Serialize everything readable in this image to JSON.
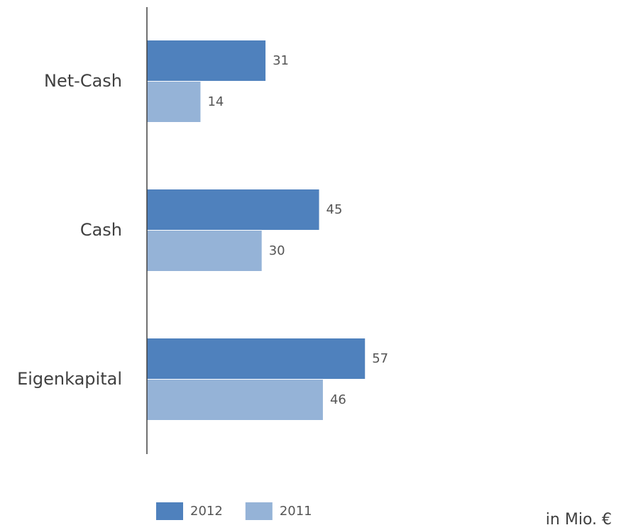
{
  "chart_data": {
    "type": "hbar",
    "categories": [
      "Net-Cash",
      "Cash",
      "Eigenkapital"
    ],
    "series": [
      {
        "name": "2012",
        "color": "#4f81bd",
        "values": [
          31,
          45,
          57
        ]
      },
      {
        "name": "2011",
        "color": "#95b3d7",
        "values": [
          14,
          30,
          46
        ]
      }
    ],
    "annotation": "in Mio. €"
  }
}
